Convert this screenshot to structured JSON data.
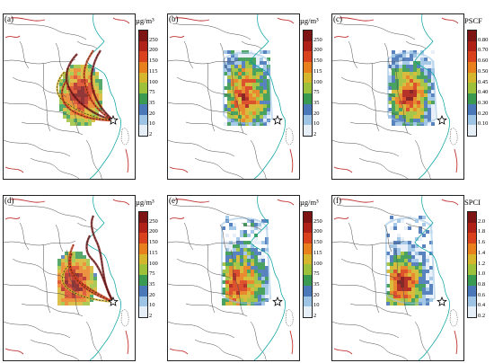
{
  "panels": [
    {
      "id": "a",
      "label": "(a)",
      "unit": "µg/m³",
      "scale": "conc",
      "style": "traj",
      "season": 0
    },
    {
      "id": "b",
      "label": "(b)",
      "unit": "µg/m³",
      "scale": "conc",
      "style": "grid",
      "season": 0
    },
    {
      "id": "c",
      "label": "(c)",
      "unit": "PSCF",
      "scale": "pscf",
      "style": "grid",
      "season": 0
    },
    {
      "id": "d",
      "label": "(d)",
      "unit": "µg/m³",
      "scale": "conc",
      "style": "traj",
      "season": 1
    },
    {
      "id": "e",
      "label": "(e)",
      "unit": "µg/m³",
      "scale": "conc",
      "style": "grid",
      "season": 1
    },
    {
      "id": "f",
      "label": "(f)",
      "unit": "SPCI",
      "scale": "spci",
      "style": "grid",
      "season": 1
    }
  ],
  "scales": {
    "conc": {
      "ticks": [
        "250",
        "200",
        "150",
        "115",
        "100",
        "75",
        "35",
        "20",
        "10",
        "2"
      ],
      "colors": [
        "#7f1414",
        "#b02218",
        "#d9421c",
        "#e8801e",
        "#d5b62c",
        "#9dc13a",
        "#3a9a52",
        "#4a78b8",
        "#9dc4e4",
        "#e6eef8"
      ]
    },
    "pscf": {
      "ticks": [
        "0.80",
        "0.70",
        "0.60",
        "0.50",
        "0.45",
        "0.40",
        "0.30",
        "0.20",
        "0.10"
      ],
      "colors": [
        "#7f1414",
        "#b02218",
        "#d9421c",
        "#e8801e",
        "#d5b62c",
        "#9dc13a",
        "#3a9a52",
        "#4a78b8",
        "#9dc4e4",
        "#e6eef8"
      ]
    },
    "spci": {
      "ticks": [
        "2.0",
        "1.8",
        "1.6",
        "1.4",
        "1.2",
        "1.0",
        "0.8",
        "0.6",
        "0.4",
        "0.2"
      ],
      "colors": [
        "#7f1414",
        "#b02218",
        "#d9421c",
        "#e8801e",
        "#d5b62c",
        "#9dc13a",
        "#3a9a52",
        "#4a78b8",
        "#9dc4e4",
        "#e6eef8"
      ]
    }
  },
  "colors": {
    "boundary": "#4a4a4a",
    "coast": "#00a0a0",
    "border": "#c03030",
    "trajectory": "#222222",
    "receptor": "#000000"
  }
}
